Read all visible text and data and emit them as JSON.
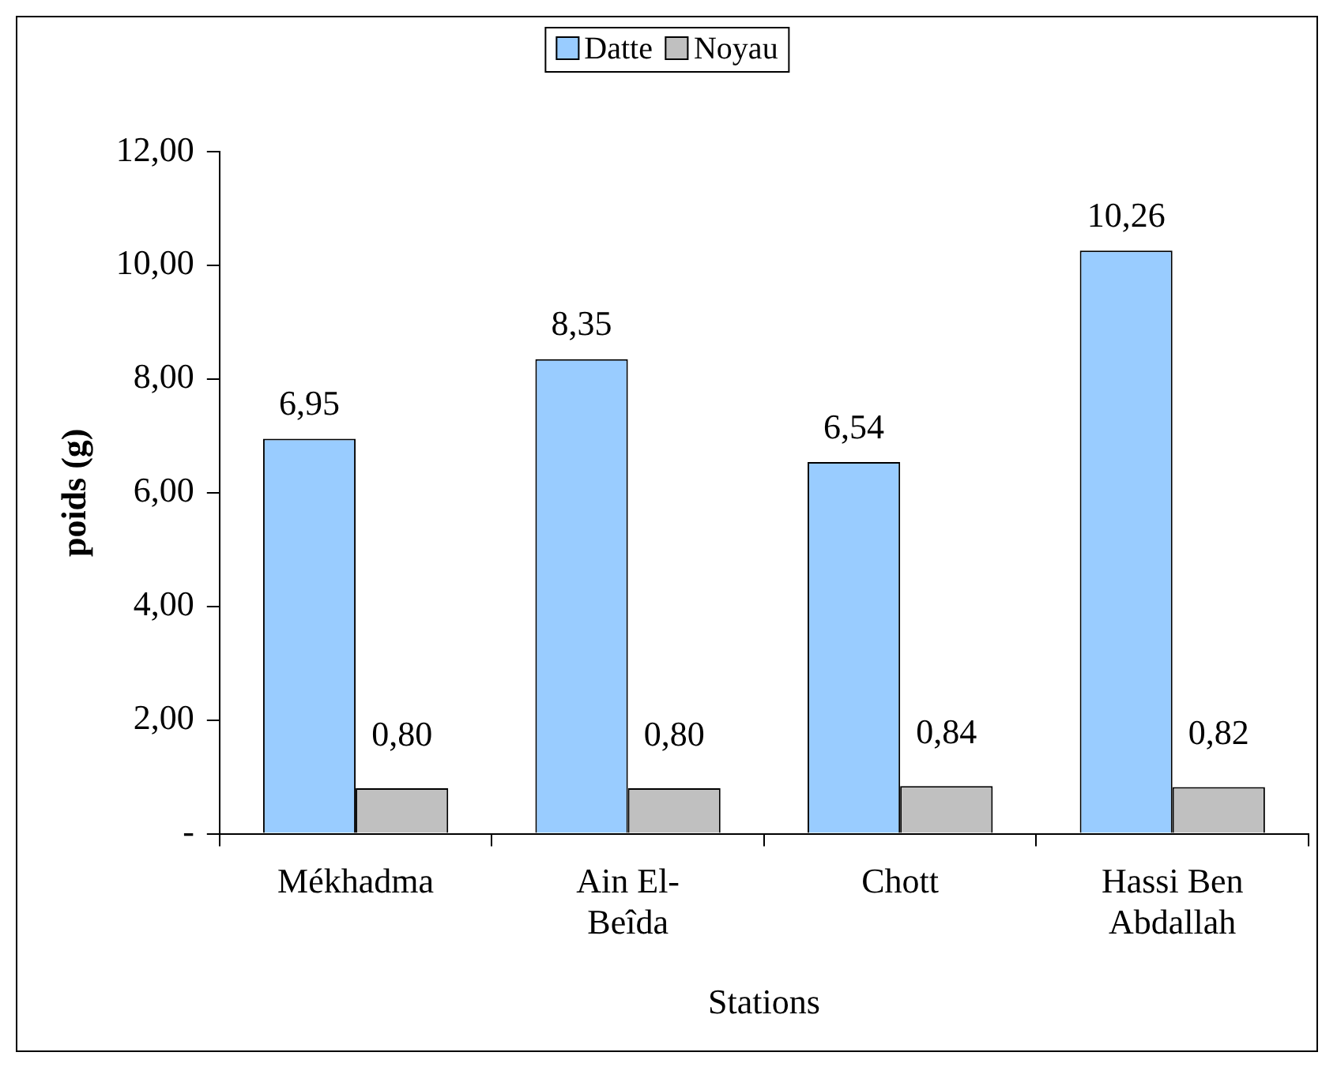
{
  "chart_data": {
    "type": "bar",
    "xlabel": "Stations",
    "ylabel": "poids (g)",
    "categories": [
      "Mékhadma",
      "Ain El-Beîda",
      "Chott",
      "Hassi Ben Abdallah"
    ],
    "series": [
      {
        "name": "Datte",
        "color": "#99ccff",
        "values": [
          6.95,
          8.35,
          6.54,
          10.26
        ],
        "value_labels": [
          "6,95",
          "8,35",
          "6,54",
          "10,26"
        ]
      },
      {
        "name": "Noyau",
        "color": "#c0c0c0",
        "values": [
          0.8,
          0.8,
          0.84,
          0.82
        ],
        "value_labels": [
          "0,80",
          "0,80",
          "0,84",
          "0,82"
        ]
      }
    ],
    "ylim": [
      0,
      12
    ],
    "yticks": [
      {
        "value": 0,
        "label": "-"
      },
      {
        "value": 2,
        "label": "2,00"
      },
      {
        "value": 4,
        "label": "4,00"
      },
      {
        "value": 6,
        "label": "6,00"
      },
      {
        "value": 8,
        "label": "8,00"
      },
      {
        "value": 10,
        "label": "10,00"
      },
      {
        "value": 12,
        "label": "12,00"
      }
    ],
    "grid": false,
    "legend": "top"
  }
}
